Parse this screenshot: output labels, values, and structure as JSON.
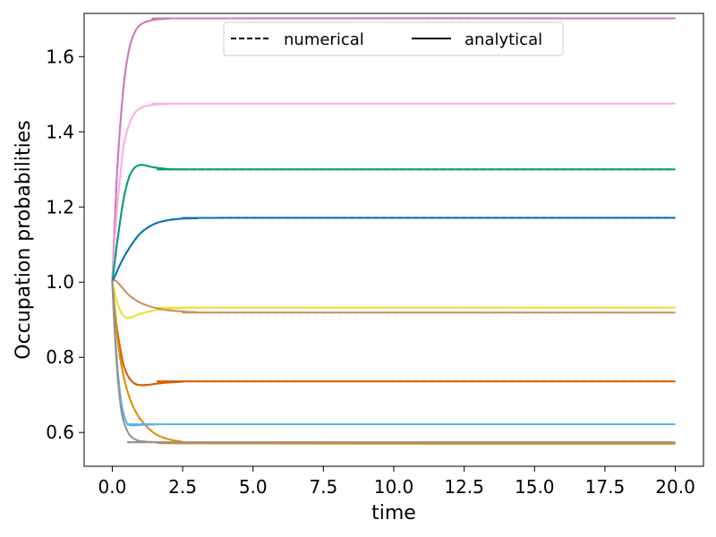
{
  "chart_data": {
    "type": "line",
    "title": "",
    "xlabel": "time",
    "ylabel": "Occupation probabilities",
    "xlim": [
      -1.0,
      21.0
    ],
    "ylim": [
      0.51,
      1.715
    ],
    "xticks": [
      0.0,
      2.5,
      5.0,
      7.5,
      10.0,
      12.5,
      15.0,
      17.5,
      20.0
    ],
    "xtick_labels": [
      "0.0",
      "2.5",
      "5.0",
      "7.5",
      "10.0",
      "12.5",
      "15.0",
      "17.5",
      "20.0"
    ],
    "yticks": [
      0.6,
      0.8,
      1.0,
      1.2,
      1.4,
      1.6
    ],
    "ytick_labels": [
      "0.6",
      "0.8",
      "1.0",
      "1.2",
      "1.4",
      "1.6"
    ],
    "grid": false,
    "legend": {
      "placement": "upper-center",
      "entries": [
        {
          "label": "numerical",
          "style": "dashed"
        },
        {
          "label": "analytical",
          "style": "solid"
        }
      ]
    },
    "series": [
      {
        "color": "#cc78bc",
        "x": [
          0,
          0.1,
          0.2,
          0.4,
          0.6,
          0.8,
          1.0,
          1.3,
          1.6,
          2.0,
          3.0,
          20.0
        ],
        "y": [
          1.0,
          1.18,
          1.33,
          1.52,
          1.62,
          1.665,
          1.685,
          1.695,
          1.699,
          1.701,
          1.702,
          1.702
        ]
      },
      {
        "color": "#fbafe4",
        "x": [
          0,
          0.1,
          0.2,
          0.4,
          0.6,
          0.8,
          1.0,
          1.3,
          1.6,
          2.0,
          3.0,
          20.0
        ],
        "y": [
          1.0,
          1.12,
          1.22,
          1.36,
          1.42,
          1.45,
          1.463,
          1.47,
          1.473,
          1.474,
          1.475,
          1.475
        ]
      },
      {
        "color": "#029e73",
        "x": [
          0,
          0.2,
          0.4,
          0.6,
          0.8,
          1.0,
          1.2,
          1.5,
          2.0,
          2.5,
          3.0,
          20.0
        ],
        "y": [
          1.0,
          1.12,
          1.22,
          1.28,
          1.305,
          1.312,
          1.31,
          1.305,
          1.301,
          1.3,
          1.3,
          1.3
        ]
      },
      {
        "color": "#0173b2",
        "x": [
          0,
          0.3,
          0.6,
          1.0,
          1.5,
          2.0,
          2.5,
          3.0,
          4.0,
          20.0
        ],
        "y": [
          1.0,
          1.05,
          1.09,
          1.13,
          1.155,
          1.165,
          1.169,
          1.17,
          1.171,
          1.171
        ]
      },
      {
        "color": "#ece133",
        "x": [
          0,
          0.2,
          0.4,
          0.6,
          0.8,
          1.0,
          1.5,
          2.0,
          2.5,
          3.0,
          20.0
        ],
        "y": [
          1.0,
          0.94,
          0.91,
          0.905,
          0.91,
          0.916,
          0.925,
          0.929,
          0.931,
          0.932,
          0.932
        ]
      },
      {
        "color": "#ca9161",
        "x": [
          0,
          0.1,
          0.3,
          0.6,
          1.0,
          1.5,
          2.0,
          2.5,
          3.0,
          4.0,
          20.0
        ],
        "y": [
          1.0,
          1.005,
          0.99,
          0.965,
          0.945,
          0.932,
          0.925,
          0.922,
          0.92,
          0.919,
          0.919
        ]
      },
      {
        "color": "#d55e00",
        "x": [
          0,
          0.1,
          0.2,
          0.4,
          0.6,
          0.8,
          1.0,
          1.3,
          1.6,
          2.0,
          2.5,
          3.0,
          20.0
        ],
        "y": [
          1.0,
          0.92,
          0.86,
          0.78,
          0.745,
          0.73,
          0.726,
          0.727,
          0.73,
          0.733,
          0.735,
          0.736,
          0.736
        ]
      },
      {
        "color": "#de8f05",
        "x": [
          0,
          0.2,
          0.4,
          0.6,
          0.8,
          1.0,
          1.3,
          1.6,
          2.0,
          2.5,
          3.0,
          20.0
        ],
        "y": [
          1.0,
          0.84,
          0.75,
          0.695,
          0.66,
          0.635,
          0.61,
          0.593,
          0.582,
          0.575,
          0.571,
          0.57
        ]
      },
      {
        "color": "#56b4e9",
        "x": [
          0,
          0.1,
          0.2,
          0.3,
          0.4,
          0.5,
          0.6,
          0.8,
          1.0,
          1.5,
          2.0,
          20.0
        ],
        "y": [
          1.0,
          0.86,
          0.76,
          0.69,
          0.65,
          0.628,
          0.62,
          0.619,
          0.62,
          0.621,
          0.622,
          0.622
        ]
      },
      {
        "color": "#949494",
        "x": [
          0,
          0.1,
          0.2,
          0.3,
          0.4,
          0.6,
          0.8,
          1.0,
          1.3,
          1.6,
          2.0,
          20.0
        ],
        "y": [
          1.0,
          0.85,
          0.74,
          0.67,
          0.63,
          0.595,
          0.582,
          0.577,
          0.575,
          0.574,
          0.574,
          0.574
        ]
      }
    ]
  }
}
